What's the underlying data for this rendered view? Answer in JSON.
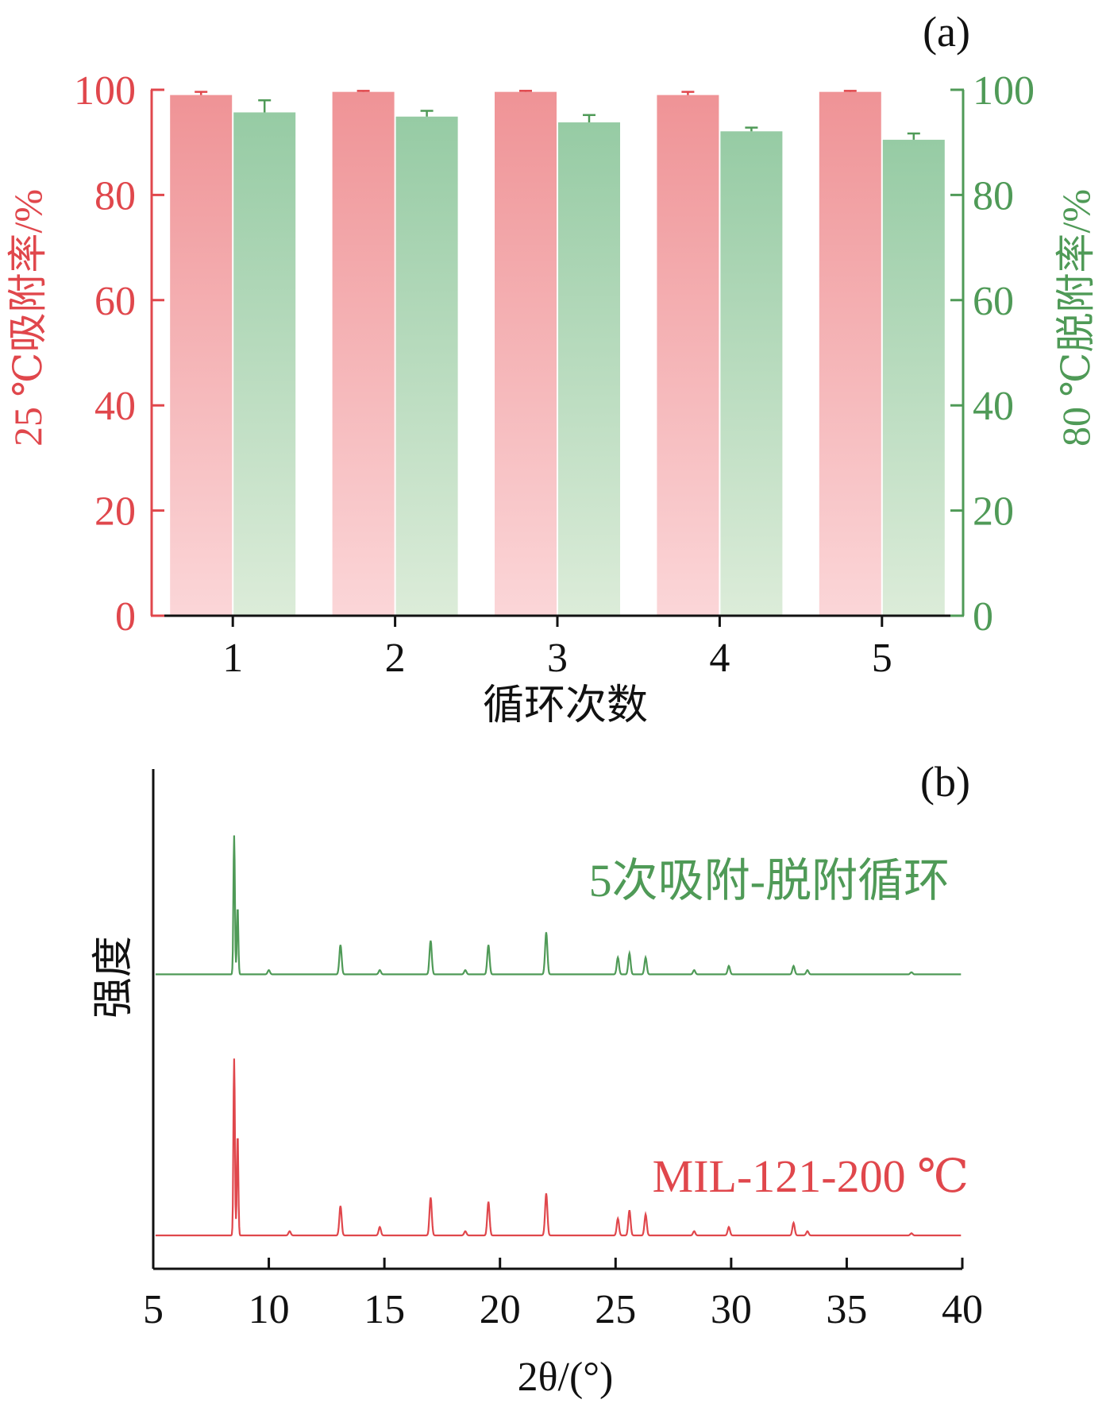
{
  "colors": {
    "adsorption": "#e0474c",
    "desorption": "#4f9a57",
    "axis": "#111111"
  },
  "chart_data": [
    {
      "panel_label": "(a)",
      "type": "bar",
      "categories": [
        "1",
        "2",
        "3",
        "4",
        "5"
      ],
      "xlabel": "循环次数",
      "ylabel_left": "25 ℃吸附率/%",
      "ylabel_right": "80 ℃脱附率/%",
      "ylim": [
        0,
        100
      ],
      "yticks": [
        "0",
        "20",
        "40",
        "60",
        "80",
        "100"
      ],
      "grid": false,
      "series": [
        {
          "axis": "left",
          "color": "#e0474c",
          "values": [
            99.0,
            99.6,
            99.6,
            99.0,
            99.6
          ],
          "errors": [
            0.6,
            0.2,
            0.2,
            0.6,
            0.2
          ]
        },
        {
          "axis": "right",
          "color": "#4f9a57",
          "values": [
            95.7,
            94.9,
            93.8,
            92.1,
            90.5
          ],
          "errors": [
            2.3,
            1.1,
            1.4,
            0.7,
            1.2
          ]
        }
      ]
    },
    {
      "panel_label": "(b)",
      "type": "line",
      "xlabel": "2θ/(°)",
      "ylabel": "强度",
      "xlim": [
        5,
        40
      ],
      "xticks": [
        "5",
        "10",
        "15",
        "20",
        "25",
        "30",
        "35",
        "40"
      ],
      "grid": false,
      "series": [
        {
          "name": "5次吸附-脱附循环",
          "color": "#4f9a57",
          "baseline": 0.62,
          "peaks": [
            [
              8.5,
              0.33
            ],
            [
              8.65,
              0.16
            ],
            [
              10.0,
              0.01
            ],
            [
              13.1,
              0.07
            ],
            [
              14.8,
              0.01
            ],
            [
              17.0,
              0.08
            ],
            [
              18.5,
              0.01
            ],
            [
              19.5,
              0.07
            ],
            [
              22.0,
              0.1
            ],
            [
              25.1,
              0.04
            ],
            [
              25.6,
              0.05
            ],
            [
              26.3,
              0.04
            ],
            [
              28.4,
              0.01
            ],
            [
              29.9,
              0.02
            ],
            [
              32.7,
              0.02
            ],
            [
              33.3,
              0.01
            ],
            [
              37.8,
              0.005
            ]
          ]
        },
        {
          "name": "MIL-121-200 ℃",
          "color": "#e0474c",
          "baseline": 0.0,
          "peaks": [
            [
              8.5,
              0.42
            ],
            [
              8.65,
              0.24
            ],
            [
              10.9,
              0.01
            ],
            [
              13.1,
              0.07
            ],
            [
              14.8,
              0.02
            ],
            [
              17.0,
              0.09
            ],
            [
              18.5,
              0.01
            ],
            [
              19.5,
              0.08
            ],
            [
              22.0,
              0.1
            ],
            [
              25.1,
              0.04
            ],
            [
              25.6,
              0.06
            ],
            [
              26.3,
              0.05
            ],
            [
              28.4,
              0.01
            ],
            [
              29.9,
              0.02
            ],
            [
              32.7,
              0.03
            ],
            [
              33.3,
              0.01
            ],
            [
              37.8,
              0.005
            ]
          ]
        }
      ]
    }
  ]
}
